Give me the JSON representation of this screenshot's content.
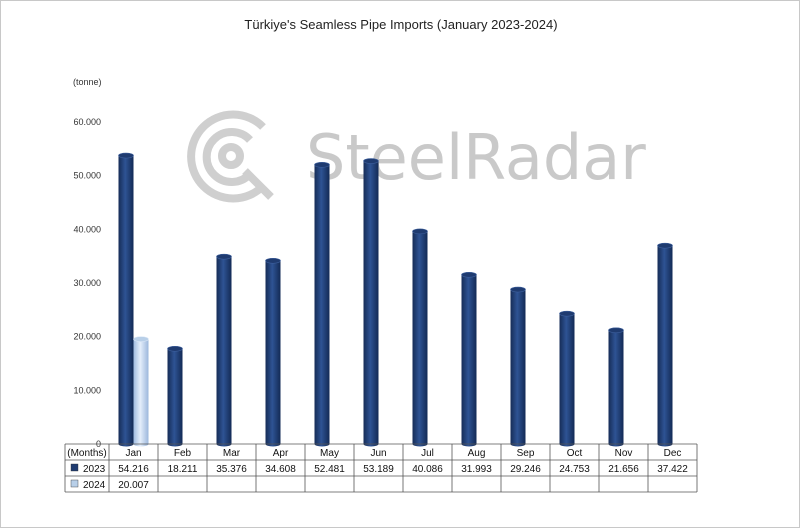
{
  "chart_data": {
    "type": "bar",
    "title": "Türkiye's Seamless Pipe Imports (January 2023-2024)",
    "unit_label": "(tonne)",
    "table_header": "(Months)",
    "categories": [
      "Jan",
      "Feb",
      "Mar",
      "Apr",
      "May",
      "Jun",
      "Jul",
      "Aug",
      "Sep",
      "Oct",
      "Nov",
      "Dec"
    ],
    "y_ticks": [
      "0",
      "10.000",
      "20.000",
      "30.000",
      "40.000",
      "50.000",
      "60.000"
    ],
    "ylim": [
      0,
      60000
    ],
    "series": [
      {
        "name": "2023",
        "color": "#1f3b70",
        "values": [
          54216,
          18211,
          35376,
          34608,
          52481,
          53189,
          40086,
          31993,
          29246,
          24753,
          21656,
          37422
        ],
        "labels": [
          "54.216",
          "18.211",
          "35.376",
          "34.608",
          "52.481",
          "53.189",
          "40.086",
          "31.993",
          "29.246",
          "24.753",
          "21.656",
          "37.422"
        ]
      },
      {
        "name": "2024",
        "color": "#b8cfe8",
        "values": [
          20007,
          null,
          null,
          null,
          null,
          null,
          null,
          null,
          null,
          null,
          null,
          null
        ],
        "labels": [
          "20.007",
          "",
          "",
          "",
          "",
          "",
          "",
          "",
          "",
          "",
          "",
          ""
        ]
      }
    ],
    "grid": false,
    "legend": "data-table",
    "watermark": "SteelRadar"
  }
}
